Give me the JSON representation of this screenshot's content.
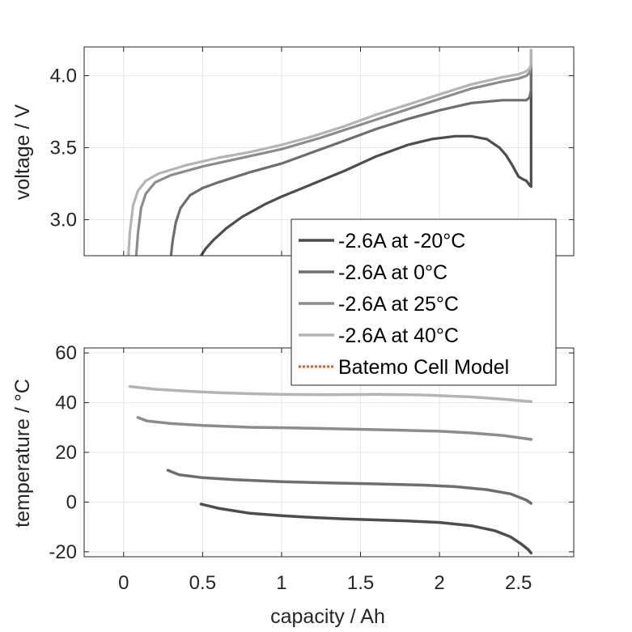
{
  "chart_data": [
    {
      "type": "line",
      "panel": "voltage",
      "xlabel": "",
      "ylabel": "voltage / V",
      "xlim": [
        -0.25,
        2.85
      ],
      "ylim": [
        2.75,
        4.2
      ],
      "xticks": [
        0,
        0.5,
        1,
        1.5,
        2,
        2.5
      ],
      "yticks": [
        3.0,
        3.5,
        4.0
      ],
      "ytick_labels": [
        "3.0",
        "3.5",
        "4.0"
      ],
      "grid": true,
      "series": [
        {
          "name": "-2.6A at -20°C",
          "color": "#4d4d4d",
          "x": [
            0.49,
            0.52,
            0.57,
            0.65,
            0.75,
            0.9,
            1.0,
            1.2,
            1.4,
            1.6,
            1.8,
            1.95,
            2.1,
            2.2,
            2.3,
            2.38,
            2.42,
            2.46,
            2.5,
            2.53,
            2.55,
            2.57,
            2.58,
            2.58,
            2.58
          ],
          "y": [
            2.75,
            2.8,
            2.86,
            2.94,
            3.02,
            3.11,
            3.16,
            3.25,
            3.34,
            3.44,
            3.52,
            3.56,
            3.58,
            3.58,
            3.56,
            3.5,
            3.45,
            3.38,
            3.3,
            3.28,
            3.27,
            3.24,
            3.23,
            3.9,
            4.15
          ]
        },
        {
          "name": "-2.6A at 0°C",
          "color": "#6e6e6e",
          "x": [
            0.3,
            0.31,
            0.33,
            0.36,
            0.42,
            0.5,
            0.6,
            0.8,
            1.0,
            1.2,
            1.4,
            1.6,
            1.8,
            2.0,
            2.2,
            2.4,
            2.5,
            2.55,
            2.57,
            2.58,
            2.58
          ],
          "y": [
            2.75,
            2.85,
            2.98,
            3.08,
            3.17,
            3.22,
            3.26,
            3.33,
            3.39,
            3.47,
            3.55,
            3.63,
            3.7,
            3.76,
            3.81,
            3.83,
            3.83,
            3.83,
            3.85,
            3.9,
            4.15
          ]
        },
        {
          "name": "-2.6A at 25°C",
          "color": "#8c8c8c",
          "x": [
            0.08,
            0.09,
            0.11,
            0.14,
            0.2,
            0.3,
            0.5,
            0.75,
            1.0,
            1.25,
            1.5,
            1.75,
            2.0,
            2.2,
            2.4,
            2.5,
            2.55,
            2.57,
            2.58,
            2.58
          ],
          "y": [
            2.75,
            2.9,
            3.08,
            3.18,
            3.26,
            3.31,
            3.37,
            3.43,
            3.49,
            3.57,
            3.66,
            3.75,
            3.84,
            3.91,
            3.96,
            3.98,
            4.0,
            4.02,
            4.05,
            4.17
          ]
        },
        {
          "name": "-2.6A at 40°C",
          "color": "#b4b4b4",
          "x": [
            0.03,
            0.04,
            0.06,
            0.09,
            0.14,
            0.22,
            0.4,
            0.6,
            0.8,
            1.0,
            1.2,
            1.4,
            1.6,
            1.8,
            2.0,
            2.2,
            2.4,
            2.5,
            2.55,
            2.57,
            2.58,
            2.58
          ],
          "y": [
            2.75,
            2.92,
            3.1,
            3.2,
            3.27,
            3.32,
            3.38,
            3.43,
            3.47,
            3.52,
            3.58,
            3.65,
            3.73,
            3.8,
            3.87,
            3.94,
            3.99,
            4.01,
            4.03,
            4.05,
            4.08,
            4.18
          ]
        },
        {
          "name": "Batemo Cell Model",
          "color": "#e8571e",
          "dashed": true,
          "x": [],
          "y": []
        }
      ]
    },
    {
      "type": "line",
      "panel": "temperature",
      "xlabel": "capacity / Ah",
      "ylabel": "temperature / °C",
      "xlim": [
        -0.25,
        2.85
      ],
      "ylim": [
        -22,
        62
      ],
      "xticks": [
        0,
        0.5,
        1,
        1.5,
        2,
        2.5
      ],
      "xtick_labels": [
        "0",
        "0.5",
        "1",
        "1.5",
        "2",
        "2.5"
      ],
      "yticks": [
        -20,
        0,
        20,
        40,
        60
      ],
      "ytick_labels": [
        "-20",
        "0",
        "20",
        "40",
        "60"
      ],
      "grid": true,
      "series": [
        {
          "name": "-2.6A at -20°C",
          "color": "#4d4d4d",
          "x": [
            0.49,
            0.6,
            0.8,
            1.0,
            1.2,
            1.4,
            1.6,
            1.8,
            2.0,
            2.2,
            2.35,
            2.45,
            2.52,
            2.56,
            2.58
          ],
          "y": [
            -0.8,
            -2.5,
            -4.5,
            -5.5,
            -6.2,
            -6.8,
            -7.2,
            -7.6,
            -8.2,
            -9.5,
            -11.5,
            -14,
            -17,
            -19,
            -20.5
          ]
        },
        {
          "name": "-2.6A at 0°C",
          "color": "#6e6e6e",
          "x": [
            0.28,
            0.35,
            0.5,
            0.7,
            1.0,
            1.3,
            1.6,
            1.9,
            2.1,
            2.3,
            2.45,
            2.55,
            2.58
          ],
          "y": [
            12.8,
            11,
            9.8,
            9,
            8.2,
            7.7,
            7.3,
            6.8,
            6.2,
            5,
            3.3,
            0.8,
            -0.5
          ]
        },
        {
          "name": "-2.6A at 25°C",
          "color": "#8c8c8c",
          "x": [
            0.09,
            0.15,
            0.3,
            0.5,
            0.8,
            1.1,
            1.4,
            1.7,
            2.0,
            2.2,
            2.4,
            2.58
          ],
          "y": [
            34,
            32.6,
            31.6,
            30.8,
            30.1,
            29.8,
            29.4,
            29,
            28.5,
            27.8,
            26.8,
            25.2
          ]
        },
        {
          "name": "-2.6A at 40°C",
          "color": "#b4b4b4",
          "x": [
            0.04,
            0.2,
            0.4,
            0.6,
            0.8,
            1.0,
            1.3,
            1.6,
            1.9,
            2.2,
            2.4,
            2.58
          ],
          "y": [
            46.5,
            45.4,
            44.6,
            44,
            43.6,
            43.3,
            43.2,
            43.3,
            43.1,
            42.3,
            41.4,
            40.4
          ]
        },
        {
          "name": "Batemo Cell Model",
          "color": "#e8571e",
          "dashed": true,
          "x": [],
          "y": []
        }
      ]
    }
  ],
  "legend": {
    "entries": [
      {
        "label": "-2.6A at -20°C",
        "color": "#4d4d4d",
        "dashed": false
      },
      {
        "label": "-2.6A at 0°C",
        "color": "#6e6e6e",
        "dashed": false
      },
      {
        "label": "-2.6A at 25°C",
        "color": "#8c8c8c",
        "dashed": false
      },
      {
        "label": "-2.6A at 40°C",
        "color": "#b4b4b4",
        "dashed": false
      },
      {
        "label": "Batemo Cell Model",
        "color": "#e8571e",
        "dashed": true
      }
    ],
    "placement": "right, between panels"
  },
  "colors": {
    "axis": "#262626",
    "grid": "#e6e6e6",
    "background": "#ffffff"
  }
}
